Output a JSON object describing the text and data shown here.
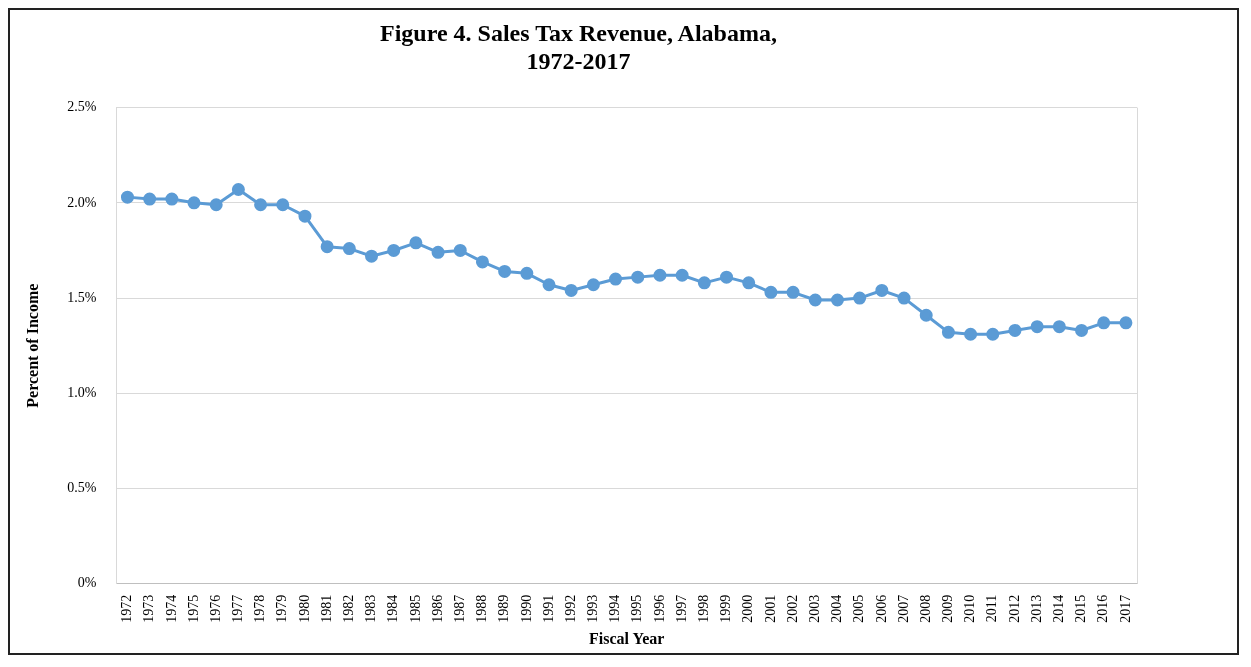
{
  "chart_data": {
    "type": "line",
    "title": [
      "Figure 4. Sales Tax Revenue, Alabama,",
      "1972-2017"
    ],
    "xlabel": "Fiscal Year",
    "ylabel": "Percent of Income",
    "categories": [
      "1972",
      "1973",
      "1974",
      "1975",
      "1976",
      "1977",
      "1978",
      "1979",
      "1980",
      "1981",
      "1982",
      "1983",
      "1984",
      "1985",
      "1986",
      "1987",
      "1988",
      "1989",
      "1990",
      "1991",
      "1992",
      "1993",
      "1994",
      "1995",
      "1996",
      "1997",
      "1998",
      "1999",
      "2000",
      "2001",
      "2002",
      "2003",
      "2004",
      "2005",
      "2006",
      "2007",
      "2008",
      "2009",
      "2010",
      "2011",
      "2012",
      "2013",
      "2014",
      "2015",
      "2016",
      "2017"
    ],
    "series": [
      {
        "color": "#5b9bd5",
        "values": [
          2.03,
          2.02,
          2.02,
          2.0,
          1.99,
          2.07,
          1.99,
          1.99,
          1.93,
          1.77,
          1.76,
          1.72,
          1.75,
          1.79,
          1.74,
          1.75,
          1.69,
          1.64,
          1.63,
          1.57,
          1.54,
          1.57,
          1.6,
          1.61,
          1.62,
          1.62,
          1.58,
          1.61,
          1.58,
          1.53,
          1.53,
          1.49,
          1.49,
          1.5,
          1.54,
          1.5,
          1.41,
          1.32,
          1.31,
          1.31,
          1.33,
          1.35,
          1.35,
          1.33,
          1.37,
          1.37
        ]
      }
    ],
    "ylim": [
      0,
      2.5
    ],
    "yticks": [
      {
        "value": 0,
        "label": "0%"
      },
      {
        "value": 0.5,
        "label": "0.5%"
      },
      {
        "value": 1,
        "label": "1.0%"
      },
      {
        "value": 1.5,
        "label": "1.5%"
      },
      {
        "value": 2,
        "label": "2.0%"
      },
      {
        "value": 2.5,
        "label": "2.5%"
      }
    ],
    "grid": "y",
    "marker": "circle",
    "line_style": "solid",
    "legend": false
  }
}
